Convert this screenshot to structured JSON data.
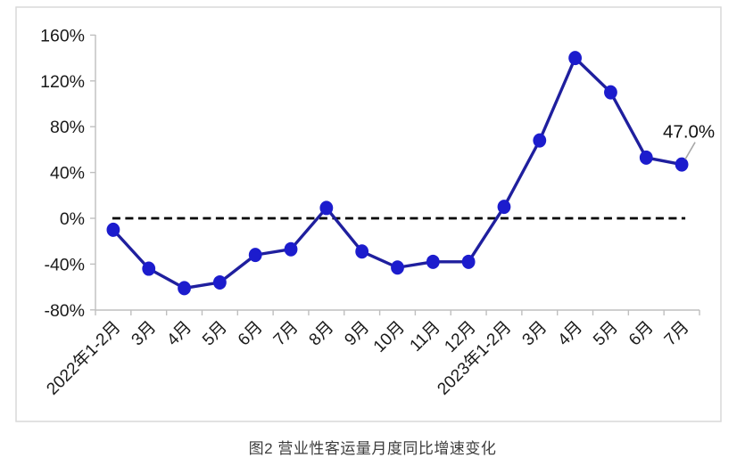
{
  "figure": {
    "caption": "图2 营业性客运量月度同比增速变化"
  },
  "chart_data": {
    "type": "line",
    "title": "图2 营业性客运量月度同比增速变化",
    "categories": [
      "2022年1-2月",
      "3月",
      "4月",
      "5月",
      "6月",
      "7月",
      "8月",
      "9月",
      "10月",
      "11月",
      "12月",
      "2023年1-2月",
      "3月",
      "4月",
      "5月",
      "6月",
      "7月"
    ],
    "series": [
      {
        "name": "营业性客运量月度同比增速",
        "values": [
          -10,
          -44,
          -61,
          -56,
          -32,
          -27,
          9,
          -29,
          -43,
          -38,
          -38,
          10,
          68,
          140,
          110,
          53,
          47
        ]
      }
    ],
    "xlabel": "",
    "ylabel": "",
    "ylim": [
      -80,
      160
    ],
    "y_tick_values": [
      160,
      120,
      80,
      40,
      0,
      -40,
      -80
    ],
    "y_tick_labels": [
      "160%",
      "120%",
      "80%",
      "40%",
      "0%",
      "-40%",
      "-80%"
    ],
    "grid": false,
    "legend_position": "none",
    "zero_line": {
      "value": 0,
      "style": "dashed",
      "color": "#000000"
    },
    "annotation": {
      "text": "47.0%",
      "index": 16,
      "value": 47.0
    },
    "colors": {
      "line": "#1f1f9e",
      "marker": "#1c1ccd",
      "axis": "#bfbfbf",
      "frame_border": "#d9d9d9",
      "tick_text": "#1a1a1a",
      "annotation_text": "#111111",
      "annotation_leader": "#a6a6a6",
      "zero_line": "#000000",
      "background": "#ffffff"
    }
  }
}
